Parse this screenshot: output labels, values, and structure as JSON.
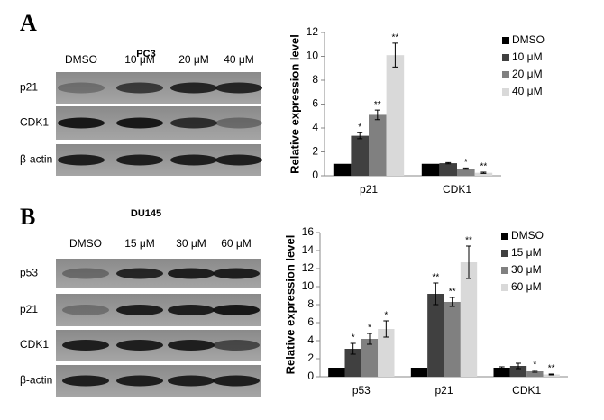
{
  "panels": [
    {
      "letter": "A",
      "cell_line": "PC3",
      "lanes": [
        "DMSO",
        "10 μM",
        "20 μM",
        "40 μM"
      ],
      "proteins": [
        "p21",
        "CDK1",
        "β-actin"
      ]
    },
    {
      "letter": "B",
      "cell_line": "DU145",
      "lanes": [
        "DMSO",
        "15 μM",
        "30 μM",
        "60 μM"
      ],
      "proteins": [
        "p53",
        "p21",
        "CDK1",
        "β-actin"
      ]
    }
  ],
  "chart_data": [
    {
      "type": "bar",
      "y_label": "Relative expression level",
      "categories": [
        "p21",
        "CDK1"
      ],
      "ylim": [
        0,
        12
      ],
      "yticks": [
        0,
        2,
        4,
        6,
        8,
        10,
        12
      ],
      "series": [
        {
          "name": "DMSO",
          "color": "#000000",
          "values": [
            1,
            1
          ],
          "errors": [
            null,
            null
          ],
          "significance": [
            null,
            null
          ]
        },
        {
          "name": "10 μM",
          "color": "#404040",
          "values": [
            3.35,
            1.05
          ],
          "errors": [
            0.25,
            0.05
          ],
          "significance": [
            "*",
            null
          ]
        },
        {
          "name": "20 μM",
          "color": "#808080",
          "values": [
            5.1,
            0.6
          ],
          "errors": [
            0.4,
            0.05
          ],
          "significance": [
            "**",
            "*"
          ]
        },
        {
          "name": "40 μM",
          "color": "#d9d9d9",
          "values": [
            10.1,
            0.25
          ],
          "errors": [
            1.0,
            0.05
          ],
          "significance": [
            "**",
            "**"
          ]
        }
      ]
    },
    {
      "type": "bar",
      "y_label": "Relative expression level",
      "categories": [
        "p53",
        "p21",
        "CDK1"
      ],
      "ylim": [
        0,
        16
      ],
      "yticks": [
        0,
        2,
        4,
        6,
        8,
        10,
        12,
        14,
        16
      ],
      "series": [
        {
          "name": "DMSO",
          "color": "#000000",
          "values": [
            1,
            1,
            1
          ],
          "errors": [
            null,
            null,
            0.1
          ],
          "significance": [
            null,
            null,
            null
          ]
        },
        {
          "name": "15 μM",
          "color": "#404040",
          "values": [
            3.1,
            9.2,
            1.2
          ],
          "errors": [
            0.6,
            1.2,
            0.3
          ],
          "significance": [
            "*",
            "**",
            null
          ]
        },
        {
          "name": "30 μM",
          "color": "#808080",
          "values": [
            4.2,
            8.3,
            0.6
          ],
          "errors": [
            0.6,
            0.5,
            0.1
          ],
          "significance": [
            "*",
            "**",
            "*"
          ]
        },
        {
          "name": "60 μM",
          "color": "#d9d9d9",
          "values": [
            5.3,
            12.7,
            0.25
          ],
          "errors": [
            0.9,
            1.8,
            0.05
          ],
          "significance": [
            "*",
            "**",
            "**"
          ]
        }
      ]
    }
  ]
}
